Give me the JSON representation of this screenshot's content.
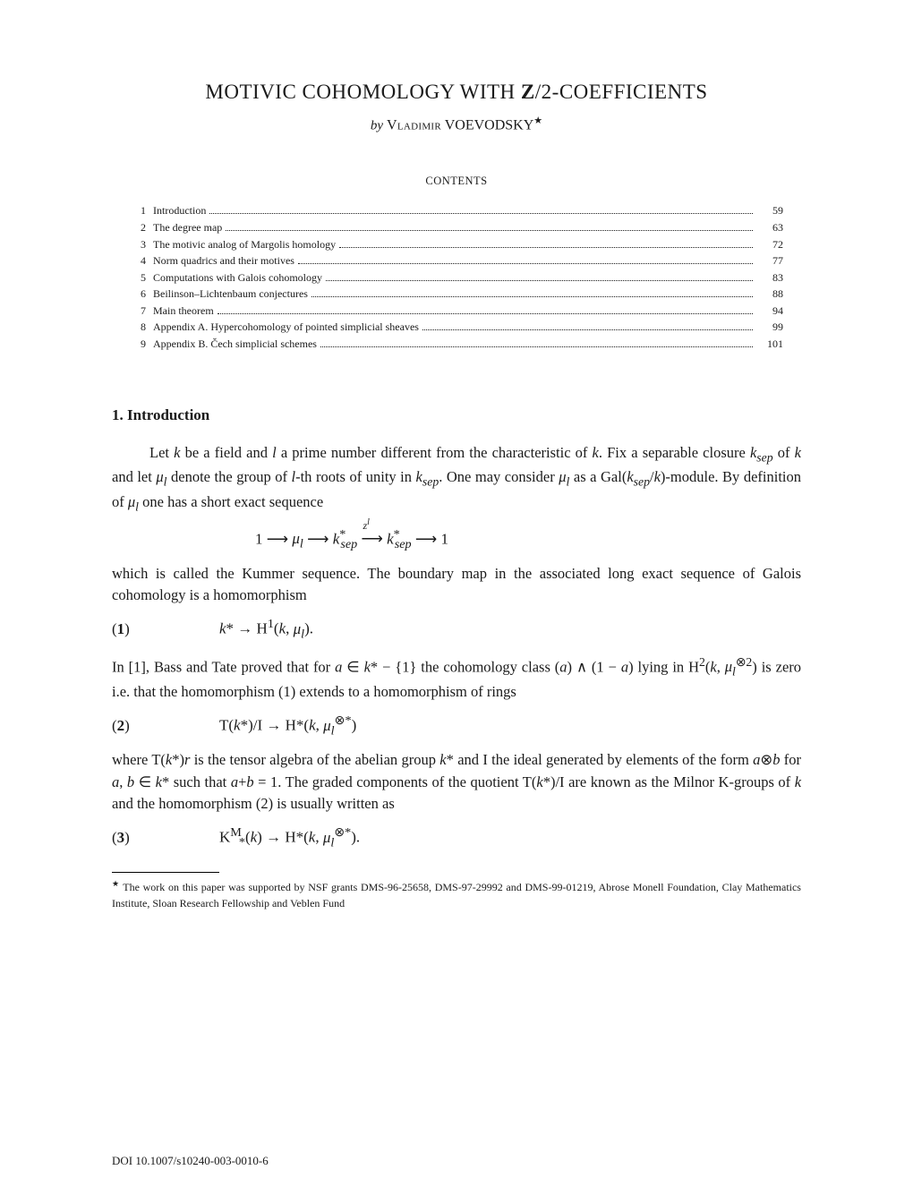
{
  "title": "MOTIVIC COHOMOLOGY WITH Z/2-COEFFICIENTS",
  "title_html": "MOTIVIC COHOMOLOGY WITH <b>Z</b>/2-COEFFICIENTS",
  "byline_by": "by",
  "byline_name_first": "Vladimir",
  "byline_name_last": "VOEVODSKY",
  "byline_star": "★",
  "contents_label": "CONTENTS",
  "toc": [
    {
      "n": "1",
      "label": "Introduction",
      "page": "59"
    },
    {
      "n": "2",
      "label": "The degree map",
      "page": "63"
    },
    {
      "n": "3",
      "label": "The motivic analog of Margolis homology",
      "page": "72"
    },
    {
      "n": "4",
      "label": "Norm quadrics and their motives",
      "page": "77"
    },
    {
      "n": "5",
      "label": "Computations with Galois cohomology",
      "page": "83"
    },
    {
      "n": "6",
      "label": "Beilinson–Lichtenbaum conjectures",
      "page": "88"
    },
    {
      "n": "7",
      "label": "Main theorem",
      "page": "94"
    },
    {
      "n": "8",
      "label": "Appendix A. Hypercohomology of pointed simplicial sheaves",
      "page": "99"
    },
    {
      "n": "9",
      "label": "Appendix B. Čech simplicial schemes",
      "page": "101"
    }
  ],
  "section_head": "1.  Introduction",
  "para1_html": "Let <span class='ital'>k</span> be a field and <span class='ital'>l</span> a prime number different from the characteristic of <span class='ital'>k</span>. Fix a separable closure <span class='ital'>k<sub>sep</sub></span> of <span class='ital'>k</span> and let <span class='ital'>μ<sub>l</sub></span> denote the group of <span class='ital'>l</span>-th roots of unity in <span class='ital'>k<sub>sep</sub></span>. One may consider <span class='ital'>μ<sub>l</sub></span> as a Gal(<span class='ital'>k<sub>sep</sub></span>/<span class='ital'>k</span>)-module. By definition of <span class='ital'>μ<sub>l</sub></span> one has a short exact sequence",
  "disp1_html": "1 ⟶ <span class='ital'>μ<sub>l</sub></span> ⟶ <span class='ital'>k</span><sup>*</sup><sub style='margin-left:-6px'><span class='ital'>sep</span></sub> <span style='position:relative'>⟶<span style='position:absolute;left:2px;top:-14px;font-size:12px'><span class='ital'>z<sup>l</sup></span></span></span> <span class='ital'>k</span><sup>*</sup><sub style='margin-left:-6px'><span class='ital'>sep</span></sub> ⟶ 1",
  "para2_html": "which is called the Kummer sequence. The boundary map in the associated long exact sequence of Galois cohomology is a homomorphism",
  "eq1_num": "(1)",
  "eq1_body_html": "<span class='ital'>k</span>* → H<sup>1</sup>(<span class='ital'>k</span>, <span class='ital'>μ<sub>l</sub></span>).",
  "para3_html": "In [1], Bass and Tate proved that for <span class='ital'>a</span> ∈ <span class='ital'>k</span>* − {1} the cohomology class (<span class='ital'>a</span>) ∧ (1 − <span class='ital'>a</span>) lying in H<sup>2</sup>(<span class='ital'>k</span>, <span class='ital'>μ<sub>l</sub></span><sup>⊗2</sup>) is zero i.e. that the homomorphism (1) extends to a homomorphism of rings",
  "eq2_num": "(2)",
  "eq2_body_html": "T(<span class='ital'>k</span>*)/I → H*(<span class='ital'>k</span>, <span class='ital'>μ<sub>l</sub></span><sup>⊗*</sup>)",
  "para4_html": "where T(<span class='ital'>k</span>*)<span class='ital'>r</span> is the tensor algebra of the abelian group <span class='ital'>k</span>* and I the ideal generated by elements of the form <span class='ital'>a</span>⊗<span class='ital'>b</span> for <span class='ital'>a</span>, <span class='ital'>b</span> ∈ <span class='ital'>k</span>* such that <span class='ital'>a</span>+<span class='ital'>b</span> = 1. The graded components of the quotient T(<span class='ital'>k</span>*)/I are known as the Milnor K-groups of <span class='ital'>k</span> and the homomorphism (2) is usually written as",
  "eq3_num": "(3)",
  "eq3_body_html": "K<sup>M</sup><sub style='margin-left:-3px'>*</sub>(<span class='ital'>k</span>) → H*(<span class='ital'>k</span>, <span class='ital'>μ<sub>l</sub></span><sup>⊗*</sup>).",
  "footnote_html": "<sup>★</sup> The work on this paper was supported by NSF grants DMS-96-25658, DMS-97-29992 and DMS-99-01219, Abrose Monell Foundation, Clay Mathematics Institute, Sloan Research Fellowship and Veblen Fund",
  "doi": "DOI 10.1007/s10240-003-0010-6"
}
